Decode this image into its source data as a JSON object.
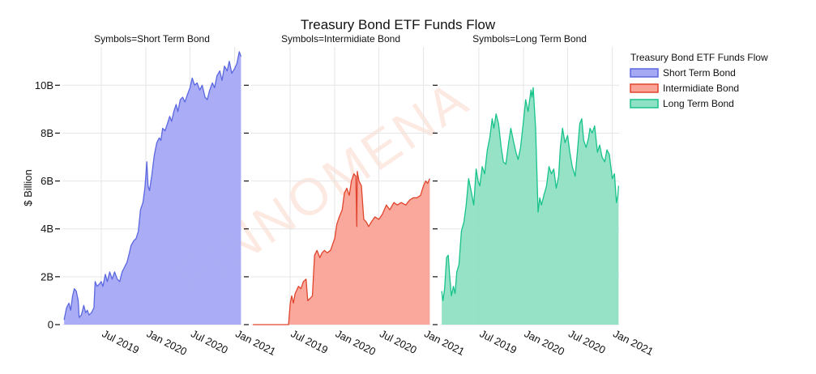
{
  "chart_data": {
    "type": "area",
    "title": "Treasury Bond ETF Funds Flow",
    "ylabel": "$ Billion",
    "ylim": [
      0,
      11.6
    ],
    "yticks": [
      {
        "value": 0,
        "label": "0"
      },
      {
        "value": 2,
        "label": "2B"
      },
      {
        "value": 4,
        "label": "4B"
      },
      {
        "value": 6,
        "label": "6B"
      },
      {
        "value": 8,
        "label": "8B"
      },
      {
        "value": 10,
        "label": "10B"
      }
    ],
    "xlim": [
      "2019-01-22",
      "2021-01-29"
    ],
    "xticks": [
      {
        "date": "2019-07-01",
        "label": "Jul 2019"
      },
      {
        "date": "2020-01-01",
        "label": "Jan 2020"
      },
      {
        "date": "2020-07-01",
        "label": "Jul 2020"
      },
      {
        "date": "2021-01-01",
        "label": "Jan 2021"
      }
    ],
    "grid": true,
    "legend": {
      "title": "Treasury Bond ETF Funds Flow",
      "placement": "right",
      "items": [
        "Short Term Bond",
        "Intermidiate Bond",
        "Long Term Bond"
      ]
    },
    "watermark": "FINNOMENA",
    "facets": [
      {
        "title": "Symbols=Short Term Bond",
        "series": "Short Term Bond",
        "line_color": "#5b67e0",
        "fill_color": "#a5a9f4",
        "points": [
          [
            "2019-01-29",
            0.2
          ],
          [
            "2019-02-08",
            0.7
          ],
          [
            "2019-02-18",
            0.9
          ],
          [
            "2019-02-25",
            0.6
          ],
          [
            "2019-03-05",
            1.2
          ],
          [
            "2019-03-12",
            1.5
          ],
          [
            "2019-03-20",
            1.4
          ],
          [
            "2019-03-28",
            1.0
          ],
          [
            "2019-04-01",
            0.3
          ],
          [
            "2019-04-10",
            0.4
          ],
          [
            "2019-04-20",
            0.8
          ],
          [
            "2019-04-28",
            0.5
          ],
          [
            "2019-05-05",
            0.6
          ],
          [
            "2019-05-12",
            0.4
          ],
          [
            "2019-05-22",
            0.5
          ],
          [
            "2019-06-01",
            0.7
          ],
          [
            "2019-06-06",
            1.8
          ],
          [
            "2019-06-14",
            1.6
          ],
          [
            "2019-06-24",
            1.7
          ],
          [
            "2019-07-01",
            1.8
          ],
          [
            "2019-07-08",
            1.6
          ],
          [
            "2019-07-18",
            2.1
          ],
          [
            "2019-07-26",
            1.8
          ],
          [
            "2019-08-05",
            2.2
          ],
          [
            "2019-08-15",
            1.9
          ],
          [
            "2019-08-25",
            2.2
          ],
          [
            "2019-09-05",
            1.9
          ],
          [
            "2019-09-15",
            1.8
          ],
          [
            "2019-09-25",
            2.2
          ],
          [
            "2019-10-05",
            2.4
          ],
          [
            "2019-10-15",
            2.6
          ],
          [
            "2019-10-25",
            3.0
          ],
          [
            "2019-11-01",
            3.3
          ],
          [
            "2019-11-12",
            3.5
          ],
          [
            "2019-11-22",
            3.6
          ],
          [
            "2019-12-01",
            3.9
          ],
          [
            "2019-12-10",
            4.8
          ],
          [
            "2019-12-20",
            5.1
          ],
          [
            "2019-12-28",
            5.7
          ],
          [
            "2020-01-05",
            6.8
          ],
          [
            "2020-01-10",
            5.8
          ],
          [
            "2020-01-16",
            5.6
          ],
          [
            "2020-01-25",
            6.2
          ],
          [
            "2020-02-05",
            7.1
          ],
          [
            "2020-02-15",
            7.6
          ],
          [
            "2020-02-25",
            7.8
          ],
          [
            "2020-03-03",
            7.7
          ],
          [
            "2020-03-10",
            8.2
          ],
          [
            "2020-03-20",
            8.1
          ],
          [
            "2020-03-30",
            8.4
          ],
          [
            "2020-04-08",
            8.7
          ],
          [
            "2020-04-16",
            8.5
          ],
          [
            "2020-04-25",
            8.9
          ],
          [
            "2020-05-05",
            9.2
          ],
          [
            "2020-05-12",
            8.9
          ],
          [
            "2020-05-22",
            9.4
          ],
          [
            "2020-06-01",
            9.5
          ],
          [
            "2020-06-10",
            9.3
          ],
          [
            "2020-06-20",
            9.6
          ],
          [
            "2020-07-01",
            9.9
          ],
          [
            "2020-07-10",
            10.3
          ],
          [
            "2020-07-20",
            10.0
          ],
          [
            "2020-07-30",
            10.1
          ],
          [
            "2020-08-10",
            9.8
          ],
          [
            "2020-08-20",
            10.0
          ],
          [
            "2020-09-01",
            9.5
          ],
          [
            "2020-09-10",
            9.4
          ],
          [
            "2020-09-20",
            9.8
          ],
          [
            "2020-10-01",
            10.1
          ],
          [
            "2020-10-10",
            9.9
          ],
          [
            "2020-10-20",
            10.4
          ],
          [
            "2020-11-01",
            10.6
          ],
          [
            "2020-11-10",
            10.2
          ],
          [
            "2020-11-20",
            10.8
          ],
          [
            "2020-12-01",
            10.6
          ],
          [
            "2020-12-10",
            11.0
          ],
          [
            "2020-12-20",
            10.5
          ],
          [
            "2021-01-01",
            10.7
          ],
          [
            "2021-01-10",
            10.9
          ],
          [
            "2021-01-20",
            11.4
          ],
          [
            "2021-01-27",
            11.2
          ]
        ]
      },
      {
        "title": "Symbols=Intermidiate Bond",
        "series": "Intermidiate Bond",
        "line_color": "#e0442c",
        "fill_color": "#fba397",
        "points": [
          [
            "2019-01-29",
            0.0
          ],
          [
            "2019-06-25",
            0.0
          ],
          [
            "2019-07-02",
            0.9
          ],
          [
            "2019-07-08",
            1.2
          ],
          [
            "2019-07-15",
            0.9
          ],
          [
            "2019-07-22",
            1.3
          ],
          [
            "2019-08-05",
            1.6
          ],
          [
            "2019-08-15",
            1.5
          ],
          [
            "2019-08-25",
            1.8
          ],
          [
            "2019-09-05",
            1.9
          ],
          [
            "2019-09-12",
            1.0
          ],
          [
            "2019-09-22",
            1.1
          ],
          [
            "2019-10-01",
            1.2
          ],
          [
            "2019-10-10",
            2.9
          ],
          [
            "2019-10-20",
            3.1
          ],
          [
            "2019-11-01",
            2.8
          ],
          [
            "2019-11-10",
            3.0
          ],
          [
            "2019-11-20",
            3.1
          ],
          [
            "2019-12-01",
            3.0
          ],
          [
            "2019-12-15",
            3.1
          ],
          [
            "2020-01-01",
            3.6
          ],
          [
            "2020-01-10",
            4.2
          ],
          [
            "2020-01-20",
            4.5
          ],
          [
            "2020-02-01",
            4.8
          ],
          [
            "2020-02-10",
            5.5
          ],
          [
            "2020-02-20",
            5.7
          ],
          [
            "2020-03-01",
            5.4
          ],
          [
            "2020-03-10",
            6.0
          ],
          [
            "2020-03-20",
            6.3
          ],
          [
            "2020-03-28",
            6.2
          ],
          [
            "2020-04-01",
            4.1
          ],
          [
            "2020-04-03",
            6.4
          ],
          [
            "2020-04-10",
            6.0
          ],
          [
            "2020-04-20",
            5.8
          ],
          [
            "2020-04-30",
            4.4
          ],
          [
            "2020-05-10",
            4.3
          ],
          [
            "2020-05-20",
            4.1
          ],
          [
            "2020-06-01",
            4.3
          ],
          [
            "2020-06-15",
            4.5
          ],
          [
            "2020-07-01",
            4.4
          ],
          [
            "2020-07-15",
            4.6
          ],
          [
            "2020-08-01",
            5.0
          ],
          [
            "2020-08-15",
            4.8
          ],
          [
            "2020-09-01",
            5.1
          ],
          [
            "2020-09-15",
            5.0
          ],
          [
            "2020-10-01",
            5.1
          ],
          [
            "2020-10-20",
            5.0
          ],
          [
            "2020-11-05",
            5.2
          ],
          [
            "2020-11-20",
            5.3
          ],
          [
            "2020-12-05",
            5.3
          ],
          [
            "2020-12-20",
            5.4
          ],
          [
            "2021-01-01",
            5.8
          ],
          [
            "2021-01-10",
            6.0
          ],
          [
            "2021-01-18",
            5.9
          ],
          [
            "2021-01-27",
            6.1
          ]
        ]
      },
      {
        "title": "Symbols=Long Term Bond",
        "series": "Long Term Bond",
        "line_color": "#17c38b",
        "fill_color": "#8fe0c4",
        "points": [
          [
            "2019-01-29",
            1.4
          ],
          [
            "2019-02-03",
            1.0
          ],
          [
            "2019-02-10",
            1.5
          ],
          [
            "2019-02-18",
            2.8
          ],
          [
            "2019-02-25",
            2.9
          ],
          [
            "2019-03-03",
            2.0
          ],
          [
            "2019-03-10",
            1.2
          ],
          [
            "2019-03-18",
            1.6
          ],
          [
            "2019-03-25",
            1.3
          ],
          [
            "2019-04-01",
            2.2
          ],
          [
            "2019-04-10",
            2.5
          ],
          [
            "2019-04-20",
            3.9
          ],
          [
            "2019-05-01",
            4.3
          ],
          [
            "2019-05-10",
            5.0
          ],
          [
            "2019-05-20",
            6.1
          ],
          [
            "2019-06-01",
            5.5
          ],
          [
            "2019-06-10",
            5.0
          ],
          [
            "2019-06-20",
            6.5
          ],
          [
            "2019-06-28",
            6.0
          ],
          [
            "2019-07-05",
            5.8
          ],
          [
            "2019-07-15",
            6.6
          ],
          [
            "2019-07-25",
            6.3
          ],
          [
            "2019-08-05",
            7.3
          ],
          [
            "2019-08-15",
            7.8
          ],
          [
            "2019-08-25",
            8.6
          ],
          [
            "2019-09-01",
            8.2
          ],
          [
            "2019-09-10",
            8.8
          ],
          [
            "2019-09-20",
            8.4
          ],
          [
            "2019-10-01",
            7.4
          ],
          [
            "2019-10-10",
            6.8
          ],
          [
            "2019-10-20",
            6.7
          ],
          [
            "2019-11-01",
            7.6
          ],
          [
            "2019-11-10",
            8.2
          ],
          [
            "2019-11-20",
            7.7
          ],
          [
            "2019-12-01",
            7.2
          ],
          [
            "2019-12-10",
            6.9
          ],
          [
            "2019-12-20",
            7.4
          ],
          [
            "2020-01-01",
            8.5
          ],
          [
            "2020-01-10",
            9.4
          ],
          [
            "2020-01-20",
            8.9
          ],
          [
            "2020-02-01",
            9.8
          ],
          [
            "2020-02-05",
            9.5
          ],
          [
            "2020-02-10",
            9.9
          ],
          [
            "2020-02-20",
            8.2
          ],
          [
            "2020-03-01",
            4.7
          ],
          [
            "2020-03-08",
            5.3
          ],
          [
            "2020-03-15",
            5.0
          ],
          [
            "2020-03-25",
            5.4
          ],
          [
            "2020-04-05",
            5.8
          ],
          [
            "2020-04-15",
            6.6
          ],
          [
            "2020-04-25",
            6.3
          ],
          [
            "2020-05-05",
            6.5
          ],
          [
            "2020-05-15",
            5.7
          ],
          [
            "2020-05-25",
            6.2
          ],
          [
            "2020-06-01",
            7.4
          ],
          [
            "2020-06-10",
            8.2
          ],
          [
            "2020-06-20",
            7.6
          ],
          [
            "2020-07-01",
            7.9
          ],
          [
            "2020-07-10",
            7.2
          ],
          [
            "2020-07-20",
            6.6
          ],
          [
            "2020-08-01",
            6.2
          ],
          [
            "2020-08-10",
            7.2
          ],
          [
            "2020-08-20",
            8.4
          ],
          [
            "2020-08-28",
            8.6
          ],
          [
            "2020-09-05",
            7.7
          ],
          [
            "2020-09-15",
            7.4
          ],
          [
            "2020-09-25",
            7.8
          ],
          [
            "2020-10-01",
            8.2
          ],
          [
            "2020-10-10",
            8.0
          ],
          [
            "2020-10-20",
            8.3
          ],
          [
            "2020-11-01",
            7.2
          ],
          [
            "2020-11-10",
            7.5
          ],
          [
            "2020-11-20",
            7.0
          ],
          [
            "2020-12-01",
            6.8
          ],
          [
            "2020-12-10",
            7.3
          ],
          [
            "2020-12-20",
            7.1
          ],
          [
            "2021-01-01",
            6.1
          ],
          [
            "2021-01-10",
            6.3
          ],
          [
            "2021-01-18",
            5.1
          ],
          [
            "2021-01-24",
            5.4
          ],
          [
            "2021-01-27",
            5.8
          ]
        ]
      }
    ]
  }
}
